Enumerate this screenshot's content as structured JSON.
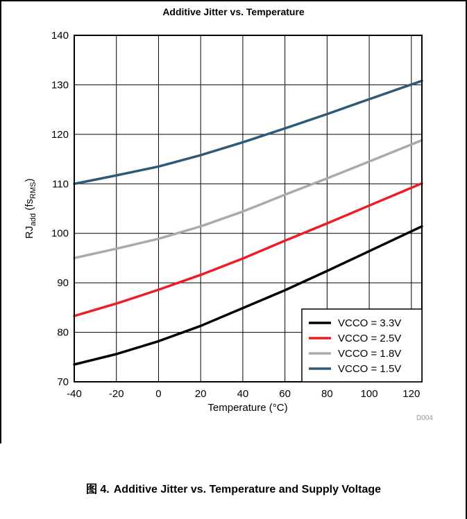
{
  "chart_data": {
    "type": "line",
    "title": "Additive Jitter vs. Temperature",
    "xlabel": "Temperature (°C)",
    "ylabel_main": "RJ",
    "ylabel_sub1": "add",
    "ylabel_mid": " (fs",
    "ylabel_sub2": "RMS",
    "ylabel_end": ")",
    "xlim": [
      -40,
      125
    ],
    "ylim": [
      70,
      140
    ],
    "xticks": [
      "-40",
      "-20",
      "0",
      "20",
      "40",
      "60",
      "80",
      "100",
      "120"
    ],
    "yticks": [
      "70",
      "80",
      "90",
      "100",
      "110",
      "120",
      "130",
      "140"
    ],
    "grid": true,
    "legend_position": "bottom-right",
    "x": [
      -40,
      -20,
      0,
      20,
      40,
      60,
      80,
      100,
      125
    ],
    "series": [
      {
        "name": "VCCO = 3.3V",
        "color": "#000000",
        "values": [
          73.5,
          75.6,
          78.2,
          81.3,
          84.9,
          88.5,
          92.4,
          96.4,
          101.4
        ]
      },
      {
        "name": "VCCO = 2.5V",
        "color": "#ee1c24",
        "values": [
          83.3,
          85.8,
          88.6,
          91.6,
          94.9,
          98.5,
          102.0,
          105.6,
          110.1
        ]
      },
      {
        "name": "VCCO = 1.8V",
        "color": "#aaaaaa",
        "values": [
          95.0,
          96.9,
          98.9,
          101.4,
          104.4,
          107.8,
          111.1,
          114.5,
          118.8
        ]
      },
      {
        "name": "VCCO = 1.5V",
        "color": "#2e5a77",
        "values": [
          110.0,
          111.7,
          113.5,
          115.8,
          118.4,
          121.2,
          124.1,
          127.1,
          130.8
        ]
      }
    ]
  },
  "doc_id": "D004",
  "caption": {
    "prefix": "图 4.",
    "text": "Additive Jitter vs. Temperature and Supply Voltage"
  }
}
